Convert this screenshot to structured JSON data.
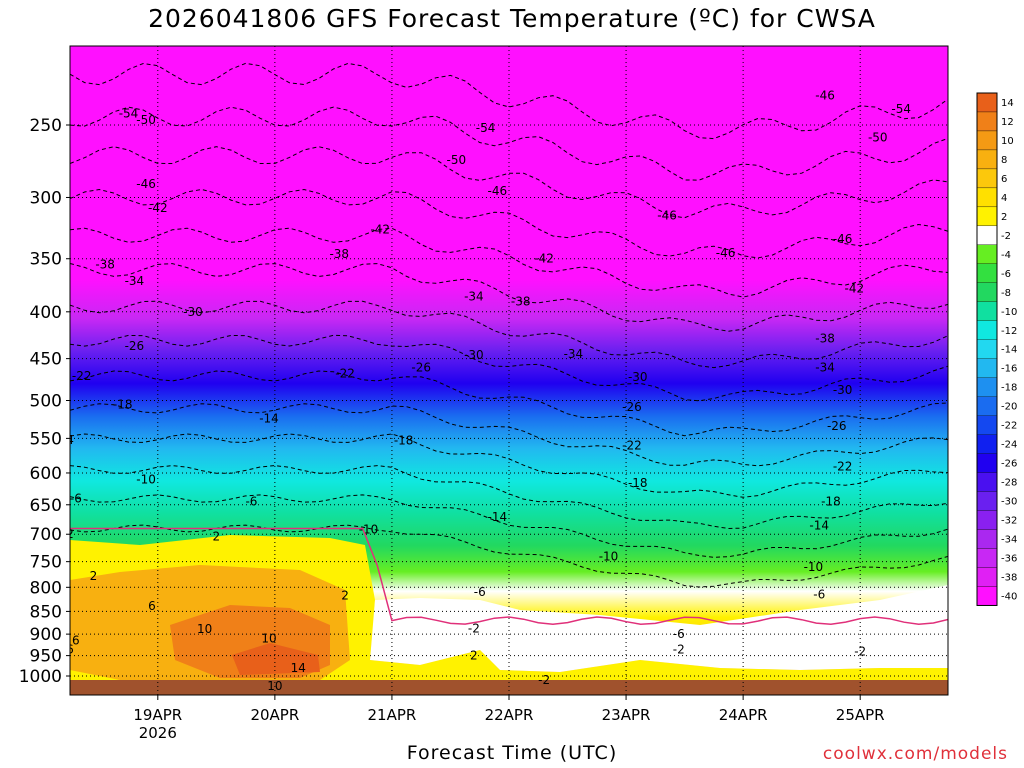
{
  "title": "2026041806 GFS Forecast Temperature (ºC) for CWSA",
  "xlabel": "Forecast Time (UTC)",
  "credit": "coolwx.com/models",
  "chart_data": {
    "type": "heatmap",
    "title": "2026041806 GFS Forecast Temperature (ºC) for CWSA",
    "xlabel": "Forecast Time (UTC)",
    "ylabel": "",
    "y_axis": "pressure (hPa), log scale, inverted",
    "y_ticks": [
      250,
      300,
      350,
      400,
      450,
      500,
      550,
      600,
      650,
      700,
      750,
      800,
      850,
      900,
      950,
      1000
    ],
    "x_ticks": [
      {
        "label": "19APR",
        "sub": "2026",
        "day": 19
      },
      {
        "label": "20APR",
        "sub": "",
        "day": 20
      },
      {
        "label": "21APR",
        "sub": "",
        "day": 21
      },
      {
        "label": "22APR",
        "sub": "",
        "day": 22
      },
      {
        "label": "23APR",
        "sub": "",
        "day": 23
      },
      {
        "label": "24APR",
        "sub": "",
        "day": 24
      },
      {
        "label": "25APR",
        "sub": "",
        "day": 25
      }
    ],
    "x_range_days": [
      18.25,
      25.75
    ],
    "colorbar": {
      "levels": [
        "14",
        "12",
        "10",
        "8",
        "6",
        "4",
        "2",
        "-2",
        "-4",
        "-6",
        "-8",
        "-10",
        "-12",
        "-14",
        "-16",
        "-18",
        "-20",
        "-22",
        "-24",
        "-26",
        "-28",
        "-30",
        "-32",
        "-34",
        "-36",
        "-38",
        "-40"
      ],
      "colors": [
        "#e8601a",
        "#f08018",
        "#f49a14",
        "#f8b010",
        "#fcc80c",
        "#ffe000",
        "#fff200",
        "#ffffff",
        "#66ee22",
        "#33e040",
        "#22d860",
        "#10e0a0",
        "#10e8e0",
        "#22d8f0",
        "#22b8f0",
        "#1e90f0",
        "#1a6cf0",
        "#1448f0",
        "#1020f0",
        "#2000f0",
        "#4a10f0",
        "#6a20f0",
        "#8a20f0",
        "#aa28f0",
        "#c828f4",
        "#e020f4",
        "#ff10ff"
      ]
    },
    "contour_labels": [
      {
        "v": "-54",
        "d": 18.75,
        "p": 243
      },
      {
        "v": "-50",
        "d": 18.9,
        "p": 247
      },
      {
        "v": "-54",
        "d": 21.8,
        "p": 252
      },
      {
        "v": "-50",
        "d": 21.55,
        "p": 273
      },
      {
        "v": "-46",
        "d": 18.9,
        "p": 290
      },
      {
        "v": "-46",
        "d": 21.9,
        "p": 295
      },
      {
        "v": "-42",
        "d": 19.0,
        "p": 308
      },
      {
        "v": "-42",
        "d": 20.9,
        "p": 325
      },
      {
        "v": "-46",
        "d": 23.35,
        "p": 314
      },
      {
        "v": "-46",
        "d": 24.7,
        "p": 232
      },
      {
        "v": "-50",
        "d": 25.15,
        "p": 258
      },
      {
        "v": "-54",
        "d": 25.35,
        "p": 240
      },
      {
        "v": "-38",
        "d": 18.55,
        "p": 355
      },
      {
        "v": "-34",
        "d": 18.8,
        "p": 370
      },
      {
        "v": "-38",
        "d": 20.55,
        "p": 346
      },
      {
        "v": "-42",
        "d": 22.3,
        "p": 350
      },
      {
        "v": "-46",
        "d": 23.85,
        "p": 345
      },
      {
        "v": "-46",
        "d": 24.85,
        "p": 333
      },
      {
        "v": "-42",
        "d": 24.95,
        "p": 377
      },
      {
        "v": "-30",
        "d": 19.3,
        "p": 400
      },
      {
        "v": "-34",
        "d": 21.7,
        "p": 385
      },
      {
        "v": "-38",
        "d": 22.1,
        "p": 390
      },
      {
        "v": "-26",
        "d": 18.8,
        "p": 436
      },
      {
        "v": "-30",
        "d": 21.7,
        "p": 446
      },
      {
        "v": "-34",
        "d": 22.55,
        "p": 445
      },
      {
        "v": "-38",
        "d": 24.7,
        "p": 428
      },
      {
        "v": "-22",
        "d": 18.35,
        "p": 470
      },
      {
        "v": "-22",
        "d": 20.6,
        "p": 467
      },
      {
        "v": "-26",
        "d": 21.25,
        "p": 460
      },
      {
        "v": "-30",
        "d": 23.1,
        "p": 471
      },
      {
        "v": "-34",
        "d": 24.7,
        "p": 460
      },
      {
        "v": "-30",
        "d": 24.85,
        "p": 487
      },
      {
        "v": "-18",
        "d": 18.7,
        "p": 505
      },
      {
        "v": "-26",
        "d": 23.05,
        "p": 508
      },
      {
        "v": "-26",
        "d": 24.8,
        "p": 533
      },
      {
        "v": "-14",
        "d": 18.2,
        "p": 552
      },
      {
        "v": "-14",
        "d": 19.95,
        "p": 523
      },
      {
        "v": "-18",
        "d": 21.1,
        "p": 553
      },
      {
        "v": "-22",
        "d": 23.05,
        "p": 560
      },
      {
        "v": "-22",
        "d": 24.85,
        "p": 590
      },
      {
        "v": "-10",
        "d": 18.9,
        "p": 610
      },
      {
        "v": "-18",
        "d": 23.1,
        "p": 615
      },
      {
        "v": "-18",
        "d": 24.75,
        "p": 645
      },
      {
        "v": "-6",
        "d": 18.3,
        "p": 640
      },
      {
        "v": "-6",
        "d": 19.8,
        "p": 645
      },
      {
        "v": "-14",
        "d": 21.9,
        "p": 670
      },
      {
        "v": "-14",
        "d": 24.65,
        "p": 685
      },
      {
        "v": "-10",
        "d": 20.8,
        "p": 692
      },
      {
        "v": "-10",
        "d": 22.85,
        "p": 740
      },
      {
        "v": "-10",
        "d": 24.6,
        "p": 760
      },
      {
        "v": "2",
        "d": 18.25,
        "p": 700
      },
      {
        "v": "2",
        "d": 19.5,
        "p": 704
      },
      {
        "v": "2",
        "d": 18.45,
        "p": 778
      },
      {
        "v": "2",
        "d": 20.6,
        "p": 817
      },
      {
        "v": "-6",
        "d": 21.75,
        "p": 810
      },
      {
        "v": "-6",
        "d": 24.65,
        "p": 815
      },
      {
        "v": "6",
        "d": 18.95,
        "p": 838
      },
      {
        "v": "-2",
        "d": 21.7,
        "p": 887
      },
      {
        "v": "-6",
        "d": 23.45,
        "p": 900
      },
      {
        "v": "-2",
        "d": 23.45,
        "p": 935
      },
      {
        "v": "-2",
        "d": 25.0,
        "p": 940
      },
      {
        "v": "6",
        "d": 18.25,
        "p": 935
      },
      {
        "v": "6",
        "d": 18.3,
        "p": 915
      },
      {
        "v": "10",
        "d": 19.4,
        "p": 888
      },
      {
        "v": "10",
        "d": 19.95,
        "p": 910
      },
      {
        "v": "14",
        "d": 20.2,
        "p": 980
      },
      {
        "v": "10",
        "d": 20.0,
        "p": 1025
      },
      {
        "v": "2",
        "d": 21.7,
        "p": 950
      },
      {
        "v": "-2",
        "d": 22.3,
        "p": 1010
      }
    ]
  }
}
